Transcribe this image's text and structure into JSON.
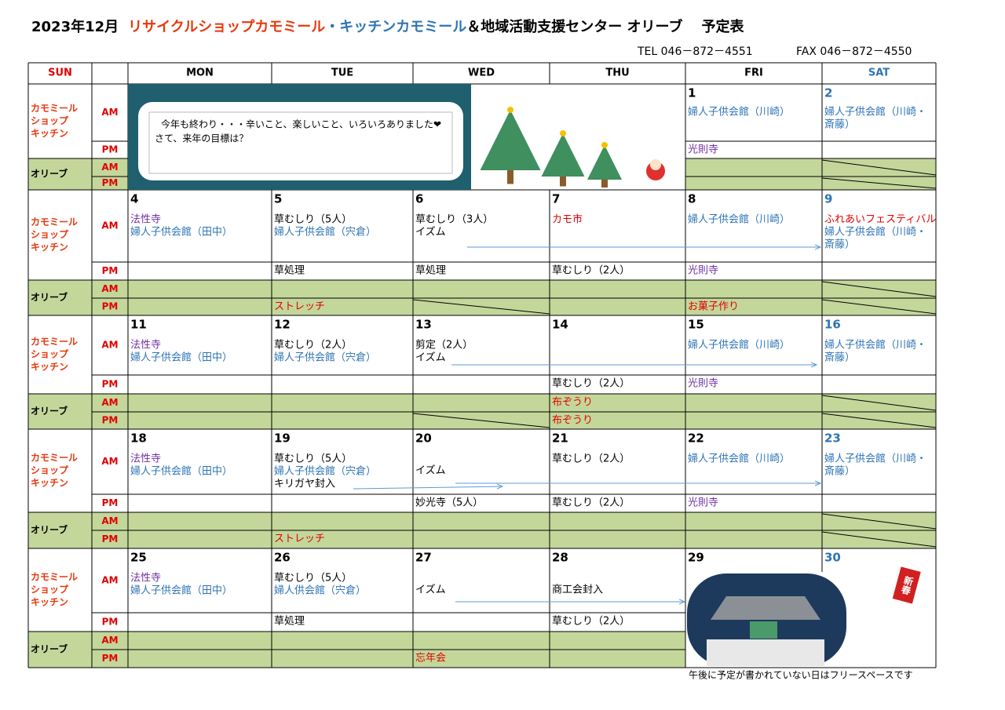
{
  "header": {
    "month": "2023年12月",
    "shop": "リサイクルショップカモミール",
    "kitchen": "・キッチンカモミール",
    "center": "＆地域活動支援センター オリーブ",
    "suffix": "予定表",
    "tel": "TEL 046－872－4551",
    "fax": "FAX 046－872－4550"
  },
  "table": {
    "days": [
      "SUN",
      "MON",
      "TUE",
      "WED",
      "THU",
      "FRI",
      "SAT"
    ],
    "row_labels": {
      "chamomile": [
        "カモミール",
        "ショップ",
        "キッチン"
      ],
      "olive": "オリーブ",
      "am": "AM",
      "pm": "PM"
    },
    "weeks": [
      {
        "days": [
          {},
          {},
          {},
          {},
          {
            "date": "1",
            "am": [
              {
                "text": "婦人子供会館（川崎）",
                "color": "#2e74b5"
              }
            ],
            "pm": [
              {
                "text": "光則寺",
                "color": "#7030a0"
              }
            ]
          },
          {
            "date": "2",
            "date_color": "#2e74b5",
            "am": [
              {
                "text": "婦人子供会館（川崎・",
                "color": "#2e74b5"
              },
              {
                "text": "斎藤）",
                "color": "#2e74b5"
              }
            ]
          }
        ]
      },
      {
        "days": [
          {
            "date": "4",
            "am": [
              {
                "text": "法性寺",
                "color": "#7030a0"
              },
              {
                "text": "婦人子供会館（田中）",
                "color": "#2e74b5"
              }
            ]
          },
          {
            "date": "5",
            "am": [
              {
                "text": "草むしり（5人）",
                "color": "#000000"
              },
              {
                "text": "婦人子供会館（宍倉）",
                "color": "#2e74b5"
              }
            ],
            "pm": [
              {
                "text": "草処理",
                "color": "#000000"
              }
            ],
            "olive_pm": [
              {
                "text": "ストレッチ",
                "color": "#e00000"
              }
            ]
          },
          {
            "date": "6",
            "am": [
              {
                "text": "草むしり（3人）",
                "color": "#000000"
              },
              {
                "text": "イズム",
                "color": "#000000"
              }
            ],
            "pm": [
              {
                "text": "草処理",
                "color": "#000000"
              }
            ]
          },
          {
            "date": "7",
            "am": [
              {
                "text": "カモ市",
                "color": "#e00000"
              }
            ],
            "pm": [
              {
                "text": "草むしり（2人）",
                "color": "#000000"
              }
            ]
          },
          {
            "date": "8",
            "am": [
              {
                "text": "婦人子供会館（川崎）",
                "color": "#2e74b5"
              }
            ],
            "pm": [
              {
                "text": "光則寺",
                "color": "#7030a0"
              }
            ],
            "olive_pm": [
              {
                "text": "お菓子作り",
                "color": "#e00000"
              }
            ]
          },
          {
            "date": "9",
            "date_color": "#2e74b5",
            "am": [
              {
                "text": "ふれあいフェスティバル",
                "color": "#e00000"
              },
              {
                "text": "婦人子供会館（川崎・",
                "color": "#2e74b5"
              },
              {
                "text": "斎藤）",
                "color": "#2e74b5"
              }
            ]
          }
        ]
      },
      {
        "days": [
          {
            "date": "11",
            "am": [
              {
                "text": "法性寺",
                "color": "#7030a0"
              },
              {
                "text": "婦人子供会館（田中）",
                "color": "#2e74b5"
              }
            ]
          },
          {
            "date": "12",
            "am": [
              {
                "text": "草むしり（2人）",
                "color": "#000000"
              },
              {
                "text": "婦人子供会館（宍倉）",
                "color": "#2e74b5"
              }
            ]
          },
          {
            "date": "13",
            "am": [
              {
                "text": "剪定（2人）",
                "color": "#000000"
              },
              {
                "text": "イズム",
                "color": "#000000"
              }
            ]
          },
          {
            "date": "14",
            "pm": [
              {
                "text": "草むしり（2人）",
                "color": "#000000"
              }
            ],
            "olive_am": [
              {
                "text": "布ぞうり",
                "color": "#e00000"
              }
            ],
            "olive_pm": [
              {
                "text": "布ぞうり",
                "color": "#e00000"
              }
            ]
          },
          {
            "date": "15",
            "am": [
              {
                "text": "婦人子供会館（川崎）",
                "color": "#2e74b5"
              }
            ],
            "pm": [
              {
                "text": "光則寺",
                "color": "#7030a0"
              }
            ]
          },
          {
            "date": "16",
            "date_color": "#2e74b5",
            "am": [
              {
                "text": "婦人子供会館（川崎・",
                "color": "#2e74b5"
              },
              {
                "text": "斎藤）",
                "color": "#2e74b5"
              }
            ]
          }
        ]
      },
      {
        "days": [
          {
            "date": "18",
            "am": [
              {
                "text": "法性寺",
                "color": "#7030a0"
              },
              {
                "text": "婦人子供会館（田中）",
                "color": "#2e74b5"
              }
            ]
          },
          {
            "date": "19",
            "am": [
              {
                "text": "草むしり（5人）",
                "color": "#000000"
              },
              {
                "text": "婦人子供会館（宍倉）",
                "color": "#2e74b5"
              },
              {
                "text": "キリガヤ封入",
                "color": "#000000"
              }
            ],
            "olive_pm": [
              {
                "text": "ストレッチ",
                "color": "#e00000"
              }
            ]
          },
          {
            "date": "20",
            "am": [
              {
                "text": "イズム",
                "color": "#000000"
              }
            ],
            "pm": [
              {
                "text": "妙光寺（5人）",
                "color": "#000000"
              }
            ]
          },
          {
            "date": "21",
            "am": [
              {
                "text": "草むしり（2人）",
                "color": "#000000"
              }
            ],
            "pm": [
              {
                "text": "草むしり（2人）",
                "color": "#000000"
              }
            ]
          },
          {
            "date": "22",
            "am": [
              {
                "text": "婦人子供会館（川崎）",
                "color": "#2e74b5"
              }
            ],
            "pm": [
              {
                "text": "光則寺",
                "color": "#7030a0"
              }
            ]
          },
          {
            "date": "23",
            "date_color": "#2e74b5",
            "am": [
              {
                "text": "婦人子供会館（川崎・",
                "color": "#2e74b5"
              },
              {
                "text": "斎藤）",
                "color": "#2e74b5"
              }
            ]
          }
        ]
      },
      {
        "days": [
          {
            "date": "25",
            "am": [
              {
                "text": "法性寺",
                "color": "#7030a0"
              },
              {
                "text": "婦人子供会館（田中）",
                "color": "#2e74b5"
              }
            ]
          },
          {
            "date": "26",
            "am": [
              {
                "text": "草むしり（5人）",
                "color": "#000000"
              },
              {
                "text": "婦人供会館（宍倉）",
                "color": "#2e74b5"
              }
            ],
            "pm": [
              {
                "text": "草処理",
                "color": "#000000"
              }
            ]
          },
          {
            "date": "27",
            "am": [
              {
                "text": "イズム",
                "color": "#000000"
              }
            ],
            "olive_pm": [
              {
                "text": "忘年会",
                "color": "#e00000"
              }
            ]
          },
          {
            "date": "28",
            "am": [
              {
                "text": "商工会封入",
                "color": "#000000"
              }
            ],
            "pm": [
              {
                "text": "草むしり（2人）",
                "color": "#000000"
              }
            ]
          },
          {
            "date": "29"
          },
          {
            "date": "30",
            "date_color": "#2e74b5"
          }
        ]
      }
    ]
  },
  "banner": {
    "lines": [
      "今年も終わり・・・辛いこと、楽しいこと、いろいろありました❤",
      "さて、来年の目標は？"
    ]
  },
  "new_year": "新春",
  "footer": "午後に予定が書かれていない日はフリースペースです"
}
